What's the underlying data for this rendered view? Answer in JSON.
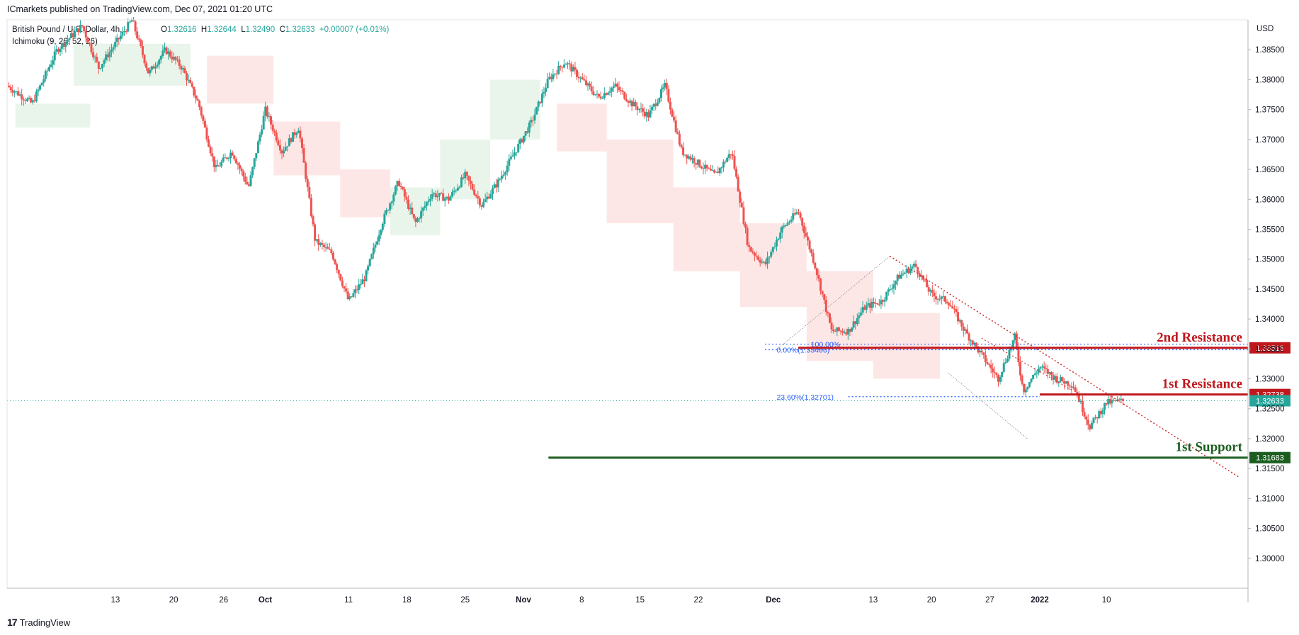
{
  "header": {
    "text": "ICmarkets published on TradingView.com, Dec 07, 2021 01:20 UTC"
  },
  "legend": {
    "symbol": "British Pound / U.S. Dollar, 4h,",
    "indicator": "Ichimoku (9, 26, 52, 26)",
    "o_label": "O",
    "o": "1.32616",
    "h_label": "H",
    "h": "1.32644",
    "l_label": "L",
    "l": "1.32490",
    "c_label": "C",
    "c": "1.32633",
    "change": "+0.00007 (+0.01%)"
  },
  "currency": "USD",
  "footer": {
    "brand": "TradingView"
  },
  "colors": {
    "up": "#26a69a",
    "down": "#ef5350",
    "resistance": "#c0171c",
    "support": "#1b5e20",
    "fib": "#2962ff",
    "trend": "#d32f2f"
  },
  "chart_data": {
    "type": "candlestick",
    "title": "British Pound / U.S. Dollar, 4h",
    "ylim": [
      1.295,
      1.39
    ],
    "y_ticks": [
      "1.38500",
      "1.38000",
      "1.37500",
      "1.37000",
      "1.36500",
      "1.36000",
      "1.35500",
      "1.35000",
      "1.34500",
      "1.34000",
      "1.33500",
      "1.33000",
      "1.32500",
      "1.32000",
      "1.31500",
      "1.31000",
      "1.30500",
      "1.30000"
    ],
    "x_ticks": [
      "13",
      "20",
      "26",
      "Oct",
      "11",
      "18",
      "25",
      "Nov",
      "8",
      "15",
      "22",
      "Dec",
      "13",
      "20",
      "27",
      "2022",
      "10"
    ],
    "x_tick_values": [
      13,
      20,
      26,
      31,
      41,
      48,
      55,
      62,
      69,
      76,
      83,
      92,
      104,
      111,
      118,
      124,
      132
    ],
    "price_path": [
      [
        0,
        1.379
      ],
      [
        3,
        1.376
      ],
      [
        6,
        1.385
      ],
      [
        9,
        1.389
      ],
      [
        11,
        1.382
      ],
      [
        13,
        1.386
      ],
      [
        15,
        1.39
      ],
      [
        17,
        1.381
      ],
      [
        19,
        1.385
      ],
      [
        21,
        1.382
      ],
      [
        23,
        1.376
      ],
      [
        25,
        1.365
      ],
      [
        27,
        1.368
      ],
      [
        29,
        1.362
      ],
      [
        31,
        1.375
      ],
      [
        33,
        1.368
      ],
      [
        35,
        1.372
      ],
      [
        37,
        1.353
      ],
      [
        39,
        1.351
      ],
      [
        41,
        1.343
      ],
      [
        43,
        1.347
      ],
      [
        45,
        1.356
      ],
      [
        47,
        1.363
      ],
      [
        49,
        1.356
      ],
      [
        51,
        1.361
      ],
      [
        53,
        1.36
      ],
      [
        55,
        1.364
      ],
      [
        57,
        1.359
      ],
      [
        59,
        1.363
      ],
      [
        61,
        1.368
      ],
      [
        63,
        1.373
      ],
      [
        65,
        1.38
      ],
      [
        67,
        1.383
      ],
      [
        69,
        1.38
      ],
      [
        71,
        1.377
      ],
      [
        73,
        1.379
      ],
      [
        75,
        1.376
      ],
      [
        77,
        1.374
      ],
      [
        79,
        1.379
      ],
      [
        81,
        1.368
      ],
      [
        83,
        1.366
      ],
      [
        85,
        1.364
      ],
      [
        87,
        1.368
      ],
      [
        89,
        1.352
      ],
      [
        91,
        1.349
      ],
      [
        93,
        1.355
      ],
      [
        95,
        1.358
      ],
      [
        97,
        1.349
      ],
      [
        99,
        1.338
      ],
      [
        101,
        1.338
      ],
      [
        103,
        1.342
      ],
      [
        105,
        1.343
      ],
      [
        107,
        1.347
      ],
      [
        109,
        1.349
      ],
      [
        111,
        1.344
      ],
      [
        113,
        1.343
      ],
      [
        115,
        1.338
      ],
      [
        117,
        1.334
      ],
      [
        119,
        1.33
      ],
      [
        121,
        1.337
      ],
      [
        122,
        1.328
      ],
      [
        124,
        1.332
      ],
      [
        126,
        1.33
      ],
      [
        128,
        1.329
      ],
      [
        130,
        1.322
      ],
      [
        132,
        1.326
      ],
      [
        134,
        1.3263
      ]
    ],
    "ichimoku_cloud": [
      {
        "start": 1,
        "end": 10,
        "top": 1.376,
        "bottom": 1.372,
        "bullish": true
      },
      {
        "start": 8,
        "end": 22,
        "top": 1.386,
        "bottom": 1.379,
        "bullish": true
      },
      {
        "start": 24,
        "end": 32,
        "top": 1.384,
        "bottom": 1.376,
        "bullish": false
      },
      {
        "start": 32,
        "end": 40,
        "top": 1.373,
        "bottom": 1.364,
        "bullish": false
      },
      {
        "start": 40,
        "end": 46,
        "top": 1.365,
        "bottom": 1.357,
        "bullish": false
      },
      {
        "start": 46,
        "end": 52,
        "top": 1.362,
        "bottom": 1.354,
        "bullish": true
      },
      {
        "start": 52,
        "end": 58,
        "top": 1.37,
        "bottom": 1.36,
        "bullish": true
      },
      {
        "start": 58,
        "end": 64,
        "top": 1.38,
        "bottom": 1.37,
        "bullish": true
      },
      {
        "start": 66,
        "end": 72,
        "top": 1.376,
        "bottom": 1.368,
        "bullish": false
      },
      {
        "start": 72,
        "end": 80,
        "top": 1.37,
        "bottom": 1.356,
        "bullish": false
      },
      {
        "start": 80,
        "end": 88,
        "top": 1.362,
        "bottom": 1.348,
        "bullish": false
      },
      {
        "start": 88,
        "end": 96,
        "top": 1.356,
        "bottom": 1.342,
        "bullish": false
      },
      {
        "start": 96,
        "end": 104,
        "top": 1.348,
        "bottom": 1.333,
        "bullish": false
      },
      {
        "start": 104,
        "end": 112,
        "top": 1.341,
        "bottom": 1.33,
        "bullish": false
      }
    ],
    "levels": [
      {
        "name": "2nd Resistance",
        "value": "1.33518",
        "price": 1.33518,
        "color": "#c0171c",
        "x_start": 95
      },
      {
        "name": "1st Resistance",
        "value": "1.32738",
        "price": 1.32738,
        "color": "#c0171c",
        "x_start": 124
      },
      {
        "name": "1st Support",
        "value": "1.31683",
        "price": 1.31683,
        "color": "#1b5e20",
        "x_start": 65
      }
    ],
    "current_price": {
      "value": "1.32633",
      "price": 1.32633
    },
    "fib_labels": [
      {
        "text": "100.00%",
        "price": 1.3358
      },
      {
        "text": "0.00%(1.33486)",
        "price": 1.33486
      },
      {
        "text": "23.60%(1.32701)",
        "price": 1.32701
      }
    ],
    "trendline": {
      "x1": 106,
      "y1": 1.3505,
      "x2": 148,
      "y2": 1.3135
    }
  }
}
